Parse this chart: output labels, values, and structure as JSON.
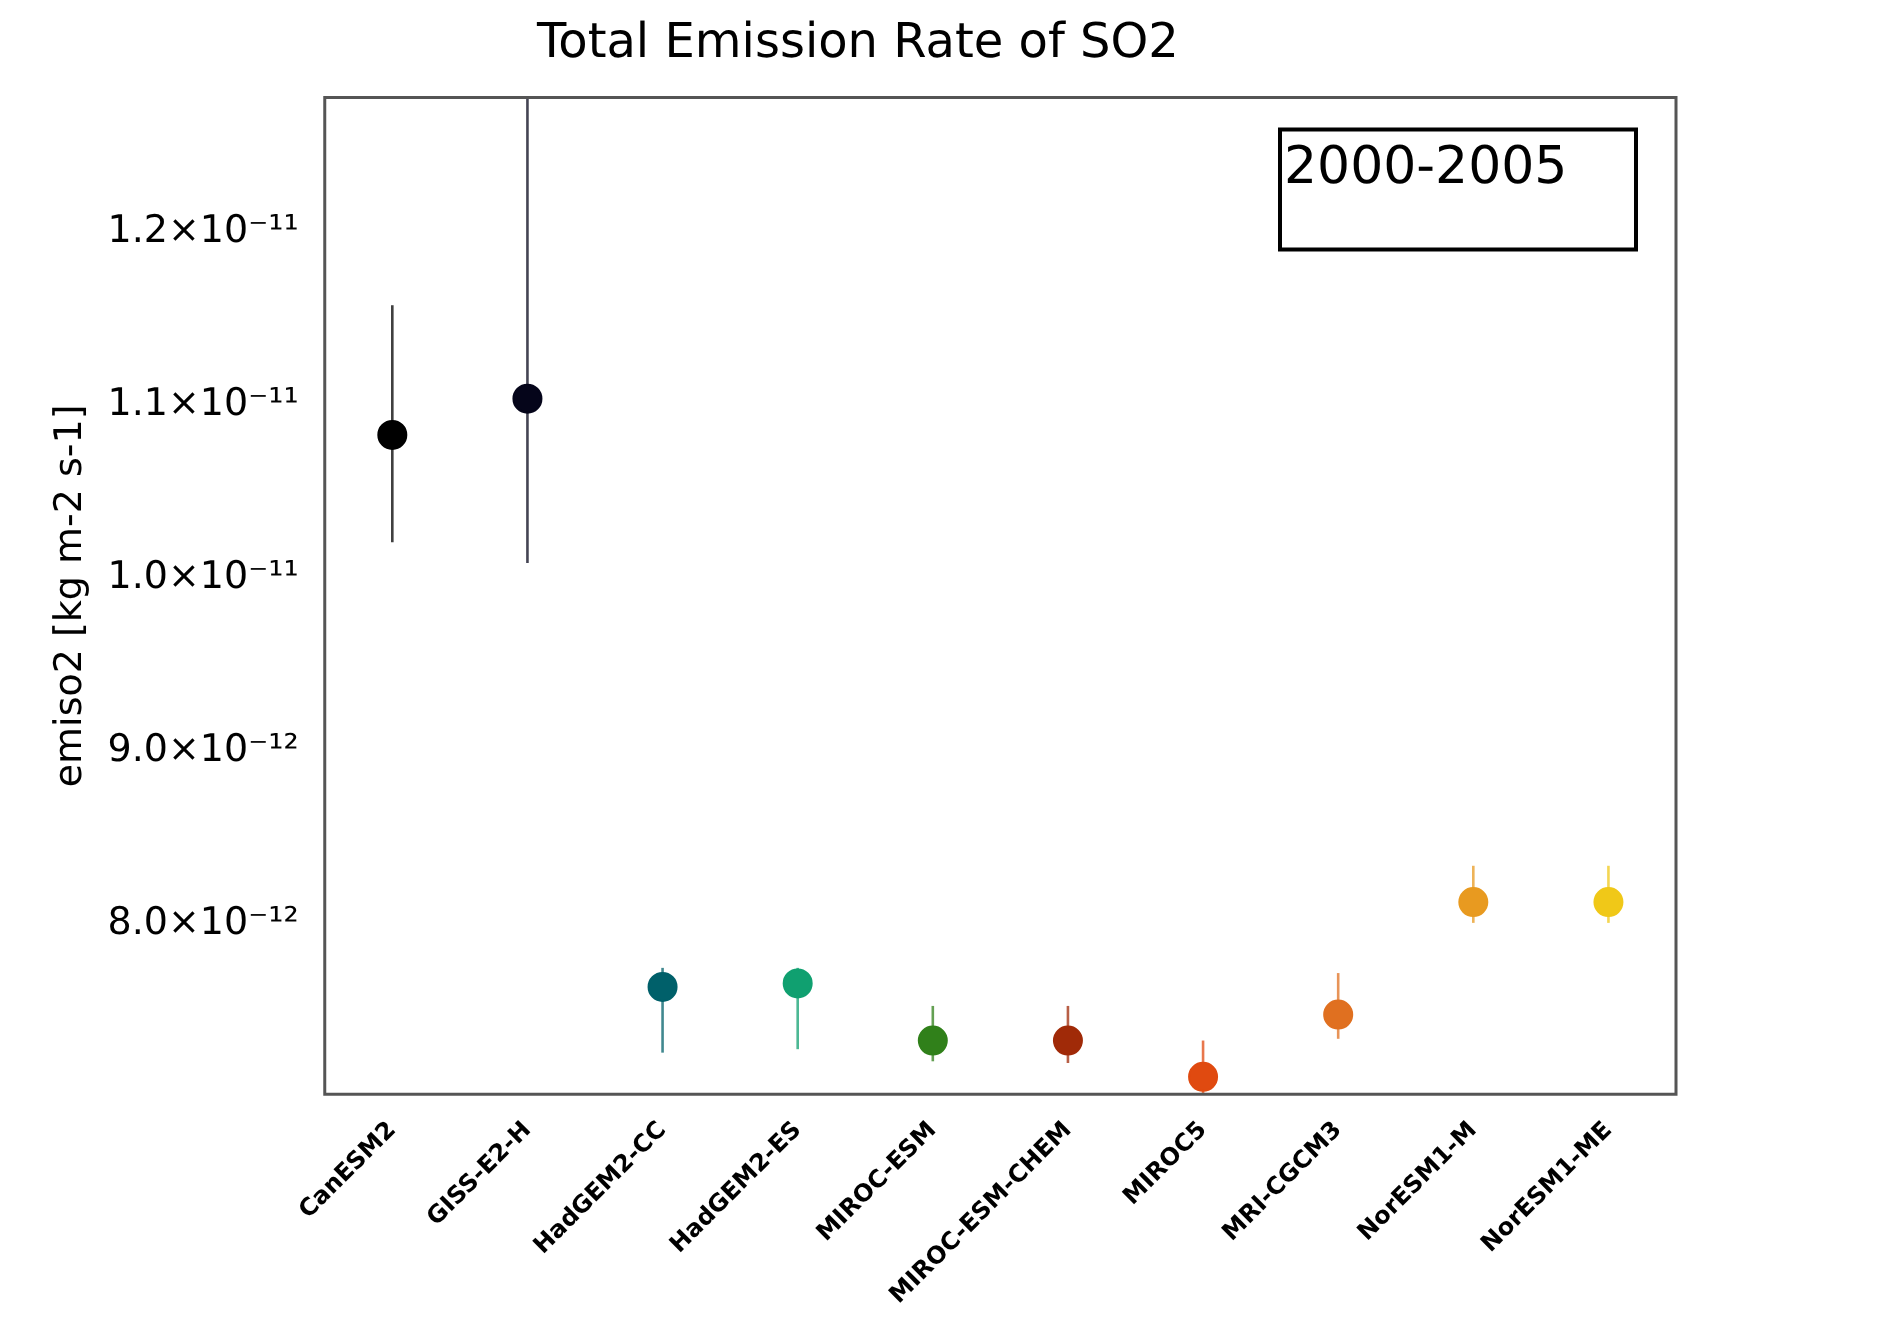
{
  "chart_data": {
    "type": "scatter",
    "title": "Total Emission Rate of SO2",
    "ylabel": "emiso2 [kg m-2 s-1]",
    "categories": [
      "CanESM2",
      "GISS-E2-H",
      "HadGEM2-CC",
      "HadGEM2-ES",
      "MIROC-ESM",
      "MIROC-ESM-CHEM",
      "MIROC5",
      "MRI-CGCM3",
      "NorESM1-M",
      "NorESM1-ME"
    ],
    "series": [
      {
        "colors": [
          "#000000",
          "#05051a",
          "#00606a",
          "#10a070",
          "#30801a",
          "#a02a08",
          "#e04a10",
          "#e07020",
          "#e89a20",
          "#f0c818"
        ],
        "values": [
          1.083e-11,
          1.104e-11,
          7.64e-12,
          7.66e-12,
          7.33e-12,
          7.33e-12,
          7.12e-12,
          7.48e-12,
          8.13e-12,
          8.13e-12
        ],
        "errors": [
          [
            1.021e-11,
            1.158e-11
          ],
          [
            1.009e-11,
            1.278e-11
          ],
          [
            7.26e-12,
            7.75e-12
          ],
          [
            7.28e-12,
            7.75e-12
          ],
          [
            7.21e-12,
            7.53e-12
          ],
          [
            7.2e-12,
            7.53e-12
          ],
          [
            7.02e-12,
            7.33e-12
          ],
          [
            7.34e-12,
            7.72e-12
          ],
          [
            8.01e-12,
            8.34e-12
          ],
          [
            8.01e-12,
            8.34e-12
          ]
        ]
      }
    ],
    "ylim": [
      7.02e-12,
      1.278e-11
    ],
    "yticks": [
      {
        "value": 8e-12,
        "label": "8.0×10⁻¹²"
      },
      {
        "value": 9e-12,
        "label": "9.0×10⁻¹²"
      },
      {
        "value": 1e-11,
        "label": "1.0×10⁻¹¹"
      },
      {
        "value": 1.1e-11,
        "label": "1.1×10⁻¹¹"
      },
      {
        "value": 1.2e-11,
        "label": "1.2×10⁻¹¹"
      }
    ],
    "marker": "circle",
    "grid": false,
    "legend": false,
    "annotations": [
      "2000-2005"
    ]
  }
}
